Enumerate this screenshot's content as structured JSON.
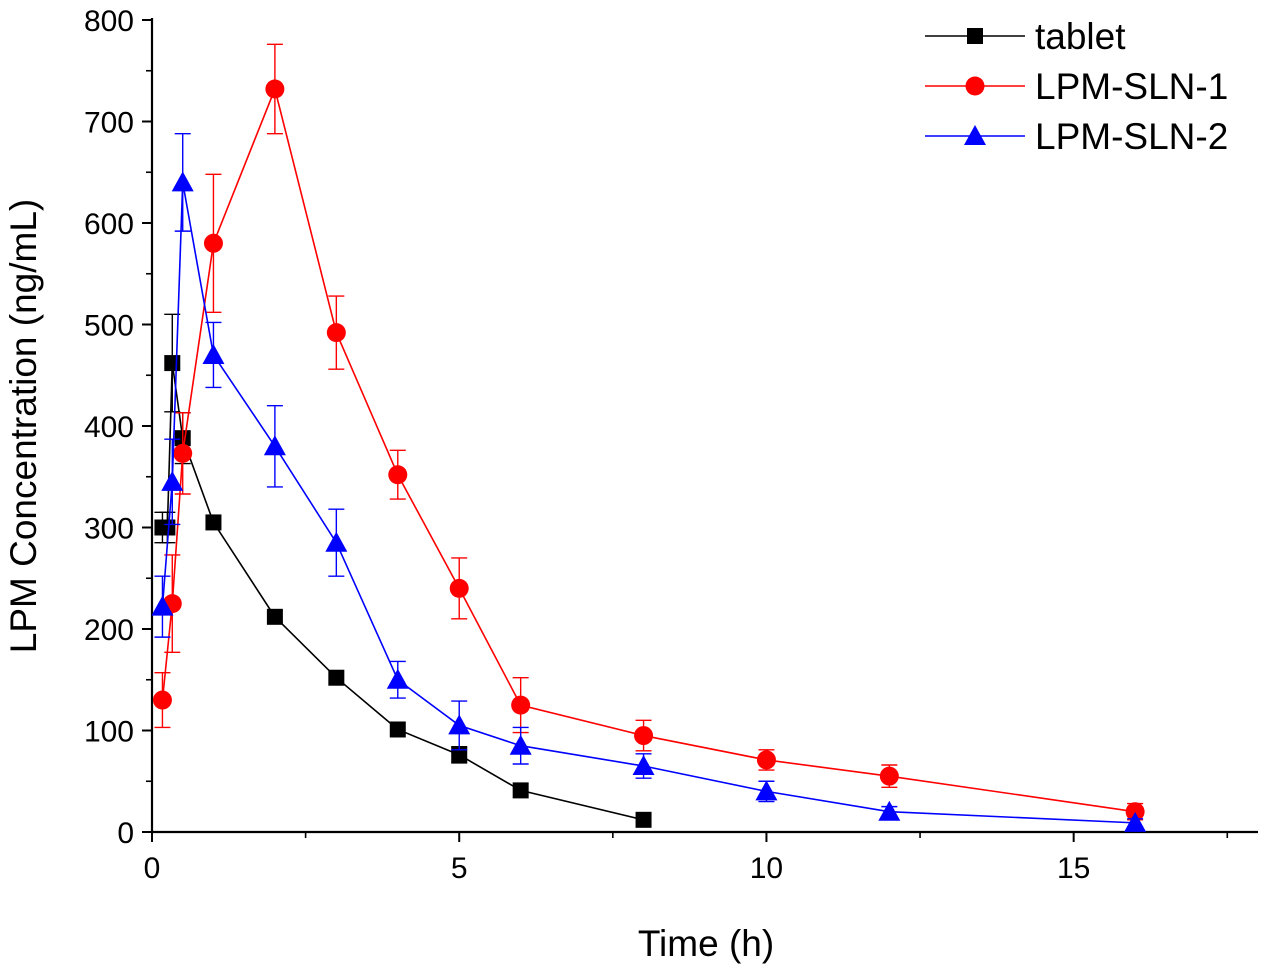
{
  "chart_data": {
    "type": "line",
    "title": "",
    "xlabel": "Time (h)",
    "ylabel": "LPM Concentration (ng/mL)",
    "xlim": [
      0,
      18
    ],
    "ylim": [
      0,
      800
    ],
    "xticks": [
      0,
      5,
      10,
      15
    ],
    "yticks": [
      0,
      100,
      200,
      300,
      400,
      500,
      600,
      700,
      800
    ],
    "grid": false,
    "legend_position": "top-right",
    "series": [
      {
        "name": "tablet",
        "color": "#000000",
        "marker": "square",
        "x": [
          0.17,
          0.25,
          0.33,
          0.5,
          1,
          2,
          3,
          4,
          5,
          6,
          8
        ],
        "y": [
          300,
          300,
          462,
          388,
          305,
          212,
          152,
          101,
          76,
          41,
          12
        ],
        "err": [
          15,
          15,
          48,
          25,
          0,
          0,
          0,
          0,
          8,
          0,
          0
        ]
      },
      {
        "name": "LPM-SLN-1",
        "color": "#ff0000",
        "marker": "circle",
        "x": [
          0.17,
          0.33,
          0.5,
          1,
          2,
          3,
          4,
          5,
          6,
          8,
          10,
          12,
          16
        ],
        "y": [
          130,
          225,
          373,
          580,
          732,
          492,
          352,
          240,
          125,
          95,
          71,
          55,
          20
        ],
        "err": [
          27,
          48,
          40,
          68,
          44,
          36,
          24,
          30,
          27,
          15,
          10,
          11,
          8
        ]
      },
      {
        "name": "LPM-SLN-2",
        "color": "#0000ff",
        "marker": "triangle",
        "x": [
          0.17,
          0.33,
          0.5,
          1,
          2,
          3,
          4,
          5,
          6,
          8,
          10,
          12,
          16
        ],
        "y": [
          222,
          345,
          640,
          470,
          380,
          285,
          150,
          105,
          85,
          65,
          40,
          20,
          9
        ],
        "err": [
          30,
          42,
          48,
          32,
          40,
          33,
          18,
          24,
          18,
          12,
          10,
          5,
          4
        ]
      }
    ]
  }
}
